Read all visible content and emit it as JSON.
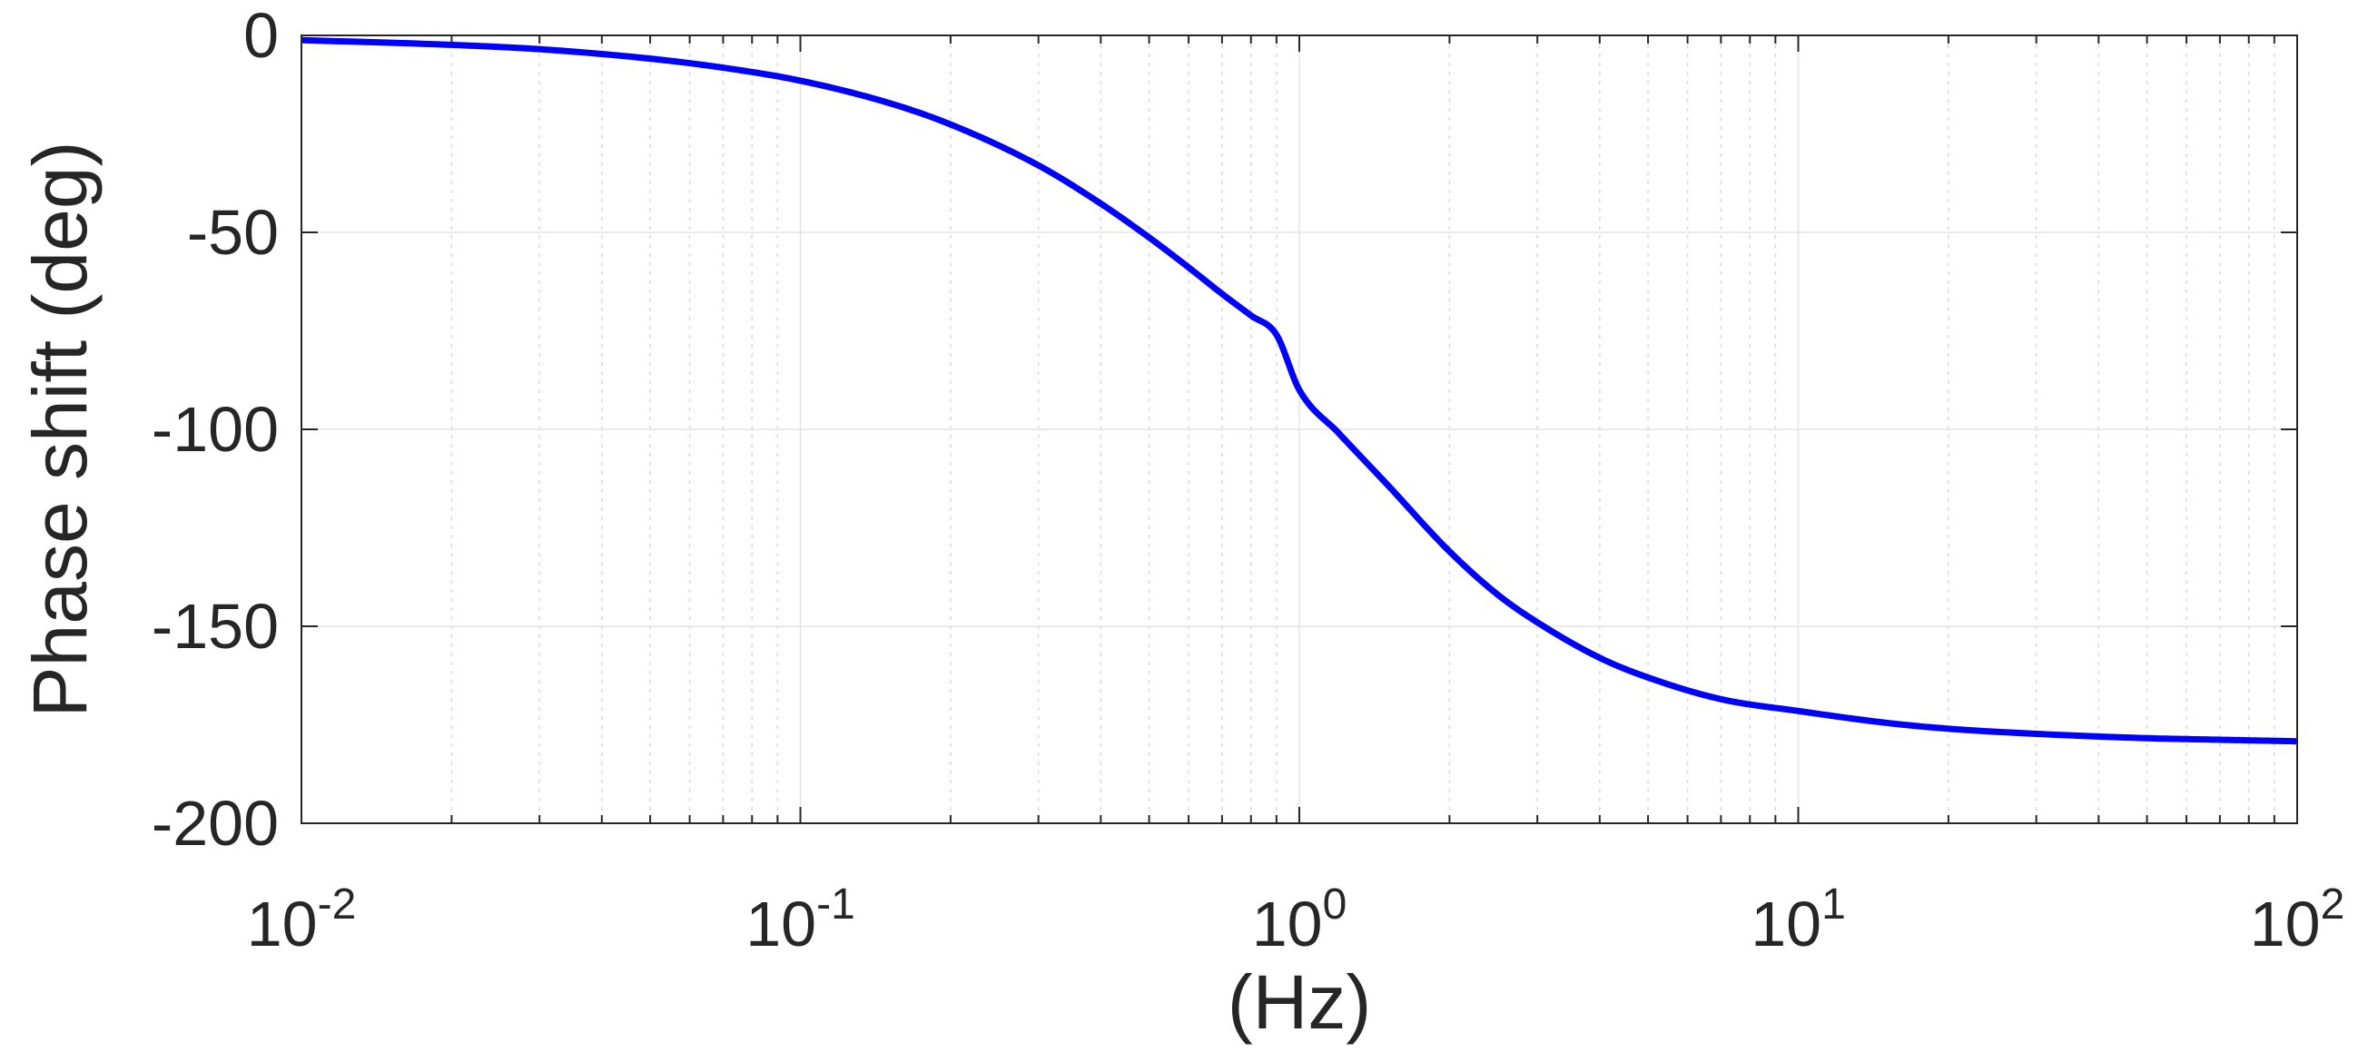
{
  "chart_data": {
    "type": "line",
    "title": "",
    "xlabel": "(Hz)",
    "ylabel": "Phase shift (deg)",
    "xscale": "log",
    "xlim": [
      0.01,
      100
    ],
    "ylim": [
      -200,
      0
    ],
    "grid": true,
    "xticks": [
      {
        "value": 0.01,
        "base": "10",
        "exp": "-2"
      },
      {
        "value": 0.1,
        "base": "10",
        "exp": "-1"
      },
      {
        "value": 1,
        "base": "10",
        "exp": "0"
      },
      {
        "value": 10,
        "base": "10",
        "exp": "1"
      },
      {
        "value": 100,
        "base": "10",
        "exp": "2"
      }
    ],
    "yticks": [
      {
        "value": 0,
        "label": "0"
      },
      {
        "value": -50,
        "label": "-50"
      },
      {
        "value": -100,
        "label": "-100"
      },
      {
        "value": -150,
        "label": "-150"
      },
      {
        "value": -200,
        "label": "-200"
      }
    ],
    "series": [
      {
        "color": "#0000ff",
        "x": [
          0.01,
          0.02,
          0.03,
          0.05,
          0.07,
          0.1,
          0.15,
          0.2,
          0.3,
          0.4,
          0.5,
          0.6,
          0.7,
          0.8,
          0.9,
          1.0,
          1.2,
          1.5,
          2.0,
          2.5,
          3.0,
          4.0,
          5.0,
          7.0,
          10.0,
          15.0,
          20.0,
          30.0,
          50.0,
          70.0,
          100.0
        ],
        "y": [
          -1.2,
          -2.4,
          -3.5,
          -5.9,
          -8.2,
          -11.5,
          -17.1,
          -22.6,
          -33.0,
          -42.7,
          -51.3,
          -58.9,
          -65.6,
          -71.1,
          -76.0,
          -90.0,
          -101.0,
          -114.0,
          -131.0,
          -142.0,
          -149.0,
          -158.0,
          -163.0,
          -168.5,
          -171.5,
          -174.5,
          -176.0,
          -177.3,
          -178.4,
          -178.8,
          -179.2
        ]
      }
    ]
  }
}
